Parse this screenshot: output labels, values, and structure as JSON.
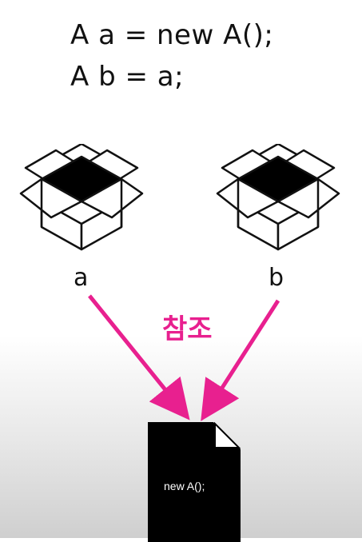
{
  "code": {
    "line1": "A a = new A();",
    "line2": "A b = a;"
  },
  "variables": {
    "a": "a",
    "b": "b"
  },
  "reference_label": "참조",
  "object": {
    "text": "new A();"
  },
  "colors": {
    "accent": "#e8208f",
    "ink": "#111111"
  }
}
